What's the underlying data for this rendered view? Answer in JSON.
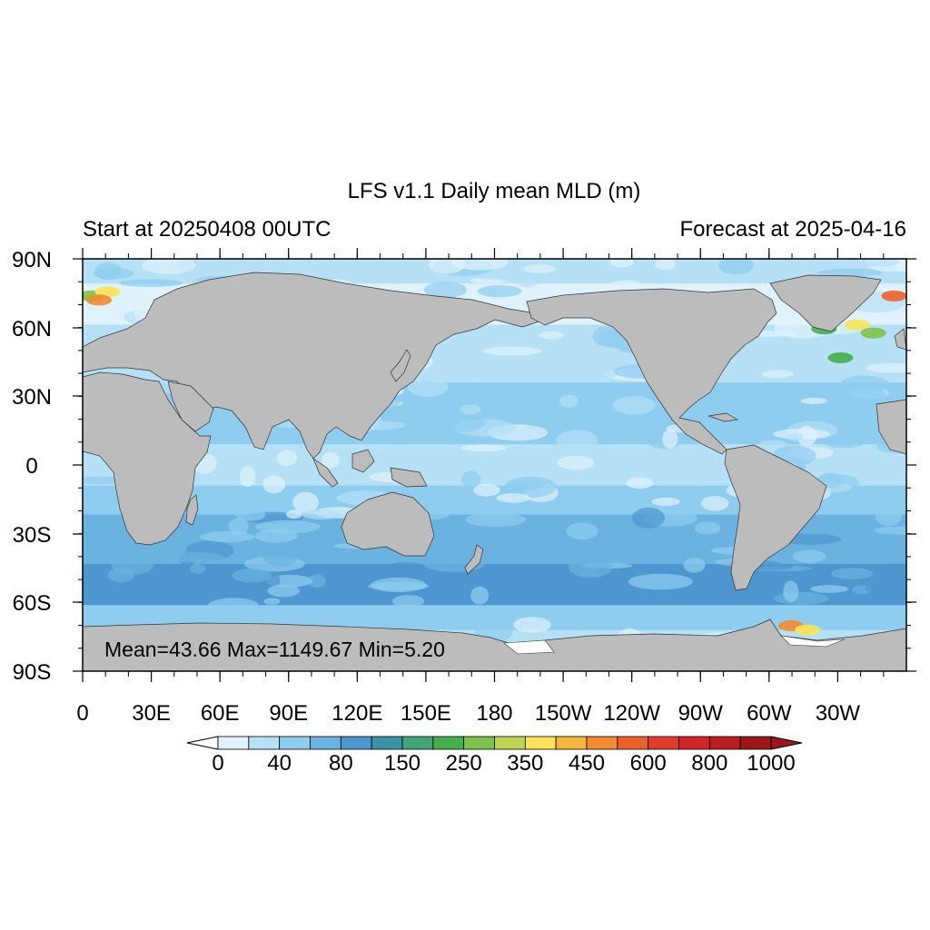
{
  "title": "LFS v1.1 Daily mean MLD (m)",
  "subtitle_left": "Start at 20250408 00UTC",
  "subtitle_right": "Forecast at 2025-04-16",
  "stats": "Mean=43.66  Max=1149.67  Min=5.20",
  "lat_ticks": [
    "90N",
    "60N",
    "30N",
    "0",
    "30S",
    "60S",
    "90S"
  ],
  "lon_ticks": [
    "0",
    "30E",
    "60E",
    "90E",
    "120E",
    "150E",
    "180",
    "150W",
    "120W",
    "90W",
    "60W",
    "30W"
  ],
  "colorbar": {
    "labels": [
      "0",
      "40",
      "80",
      "150",
      "250",
      "350",
      "450",
      "600",
      "800",
      "1000"
    ],
    "colors": [
      "#dff2fc",
      "#b5e0f6",
      "#8ecdf0",
      "#6ab3e1",
      "#4e96cf",
      "#3b93a8",
      "#43a37a",
      "#43b04d",
      "#7dc24a",
      "#c0d653",
      "#fae455",
      "#f8b53e",
      "#f48b32",
      "#ec602b",
      "#e03c27",
      "#d32528",
      "#ba1c20",
      "#9a161b"
    ]
  },
  "colors": {
    "land": "#bcbcbc",
    "ocean_base": "#b5e0f6",
    "coast": "#333333"
  }
}
